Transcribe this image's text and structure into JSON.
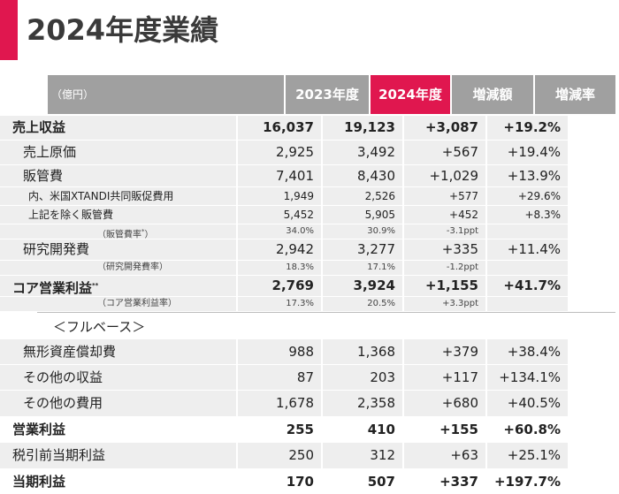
{
  "page": {
    "title": "2024年度業績"
  },
  "table": {
    "columns": [
      "（億円）",
      "2023年度",
      "2024年度",
      "増減額",
      "増減率"
    ],
    "rows": [
      {
        "label": "売上収益",
        "values": [
          "16,037",
          "19,123",
          "+3,087",
          "+19.2%"
        ]
      },
      {
        "label": "売上原価",
        "values": [
          "2,925",
          "3,492",
          "+567",
          "+19.4%"
        ]
      },
      {
        "label": "販管費",
        "values": [
          "7,401",
          "8,430",
          "+1,029",
          "+13.9%"
        ]
      },
      {
        "label": "内、米国XTANDI共同販促費用",
        "values": [
          "1,949",
          "2,526",
          "+577",
          "+29.6%"
        ]
      },
      {
        "label": "上記を除く販管費",
        "values": [
          "5,452",
          "5,905",
          "+452",
          "+8.3%"
        ]
      },
      {
        "label": "（販管費率",
        "label_sup": "*",
        "label_end": "）",
        "values": [
          "34.0%",
          "30.9%",
          "-3.1ppt",
          ""
        ]
      },
      {
        "label": "研究開発費",
        "values": [
          "2,942",
          "3,277",
          "+335",
          "+11.4%"
        ]
      },
      {
        "label": "（研究開発費率）",
        "values": [
          "18.3%",
          "17.1%",
          "-1.2ppt",
          ""
        ]
      },
      {
        "label": "コア営業利益",
        "label_sup": "**",
        "values": [
          "2,769",
          "3,924",
          "+1,155",
          "+41.7%"
        ]
      },
      {
        "label": "（コア営業利益率）",
        "values": [
          "17.3%",
          "20.5%",
          "+3.3ppt",
          ""
        ]
      },
      {
        "label": "無形資産償却費",
        "values": [
          "988",
          "1,368",
          "+379",
          "+38.4%"
        ]
      },
      {
        "label": "その他の収益",
        "values": [
          "87",
          "203",
          "+117",
          "+134.1%"
        ]
      },
      {
        "label": "その他の費用",
        "values": [
          "1,678",
          "2,358",
          "+680",
          "+40.5%"
        ]
      },
      {
        "label": "営業利益",
        "values": [
          "255",
          "410",
          "+155",
          "+60.8%"
        ]
      },
      {
        "label": "税引前当期利益",
        "values": [
          "250",
          "312",
          "+63",
          "+25.1%"
        ]
      },
      {
        "label": "当期利益",
        "values": [
          "170",
          "507",
          "+337",
          "+197.7%"
        ]
      }
    ],
    "section_full_basis": "＜フルベース＞"
  }
}
